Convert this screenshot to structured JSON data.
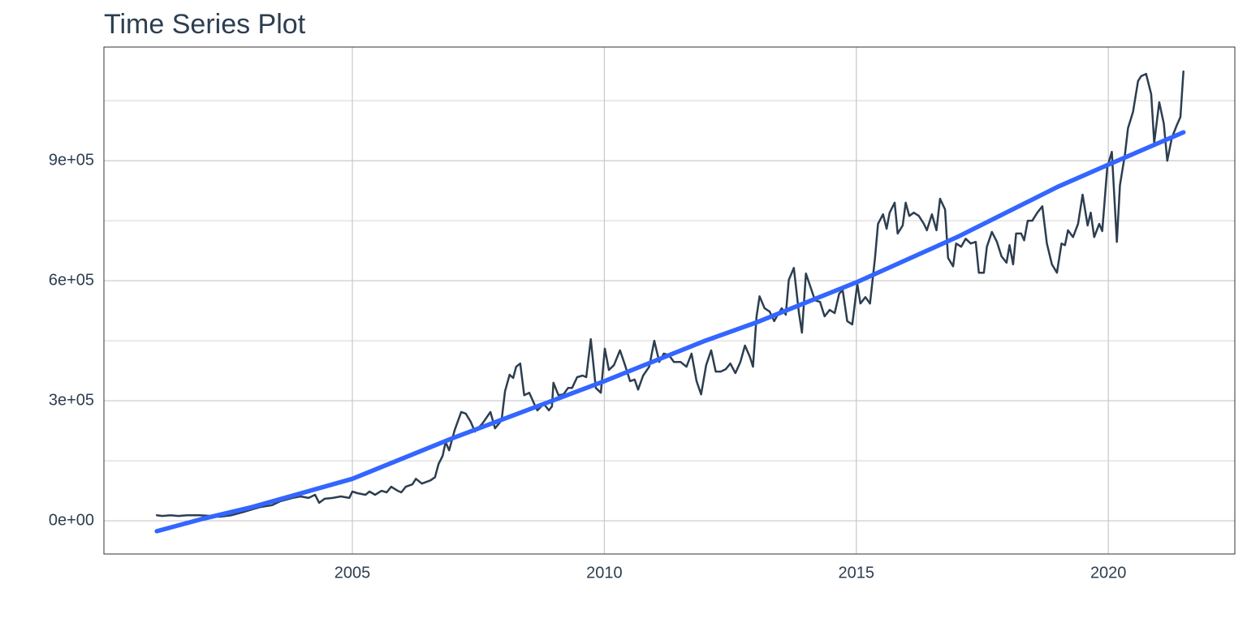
{
  "chart_data": {
    "type": "line",
    "title": "Time Series Plot",
    "xlim": [
      2000.07,
      2022.51
    ],
    "xticks": [
      2005,
      2010,
      2015,
      2020
    ],
    "ylim": [
      -83000,
      1184000
    ],
    "yticks": [
      {
        "value": 0,
        "label": "0e+00"
      },
      {
        "value": 300000,
        "label": "3e+05"
      },
      {
        "value": 600000,
        "label": "6e+05"
      },
      {
        "value": 900000,
        "label": "9e+05"
      }
    ],
    "yminor": [
      150000,
      450000,
      750000,
      1050000
    ],
    "grid": true,
    "series": [
      {
        "color": "#2c3e50",
        "width": 2.5,
        "x": [
          2001.12,
          2001.23,
          2001.39,
          2001.55,
          2001.72,
          2001.96,
          2002.2,
          2002.36,
          2002.6,
          2002.84,
          2003.0,
          2003.16,
          2003.41,
          2003.57,
          2003.81,
          2003.97,
          2004.13,
          2004.26,
          2004.34,
          2004.45,
          2004.61,
          2004.77,
          2004.94,
          2005.0,
          2005.1,
          2005.26,
          2005.34,
          2005.45,
          2005.58,
          2005.68,
          2005.77,
          2005.9,
          2005.97,
          2006.06,
          2006.19,
          2006.26,
          2006.38,
          2006.55,
          2006.64,
          2006.71,
          2006.79,
          2006.85,
          2006.92,
          2007.03,
          2007.16,
          2007.25,
          2007.35,
          2007.43,
          2007.58,
          2007.74,
          2007.83,
          2007.96,
          2008.03,
          2008.12,
          2008.19,
          2008.25,
          2008.33,
          2008.41,
          2008.51,
          2008.61,
          2008.67,
          2008.8,
          2008.9,
          2008.96,
          2008.99,
          2009.09,
          2009.19,
          2009.28,
          2009.36,
          2009.46,
          2009.57,
          2009.64,
          2009.73,
          2009.83,
          2009.93,
          2010.01,
          2010.09,
          2010.19,
          2010.31,
          2010.41,
          2010.51,
          2010.6,
          2010.67,
          2010.77,
          2010.89,
          2010.99,
          2011.09,
          2011.18,
          2011.28,
          2011.38,
          2011.51,
          2011.63,
          2011.73,
          2011.83,
          2011.92,
          2012.02,
          2012.12,
          2012.21,
          2012.31,
          2012.41,
          2012.5,
          2012.6,
          2012.7,
          2012.79,
          2012.89,
          2012.95,
          2013.02,
          2013.08,
          2013.18,
          2013.28,
          2013.37,
          2013.44,
          2013.52,
          2013.6,
          2013.66,
          2013.76,
          2013.86,
          2013.92,
          2014.0,
          2014.08,
          2014.18,
          2014.28,
          2014.37,
          2014.47,
          2014.57,
          2014.66,
          2014.73,
          2014.82,
          2014.92,
          2015.02,
          2015.08,
          2015.18,
          2015.27,
          2015.37,
          2015.43,
          2015.53,
          2015.6,
          2015.66,
          2015.76,
          2015.82,
          2015.92,
          2015.98,
          2016.05,
          2016.14,
          2016.24,
          2016.34,
          2016.4,
          2016.5,
          2016.59,
          2016.66,
          2016.76,
          2016.82,
          2016.92,
          2016.98,
          2017.08,
          2017.17,
          2017.27,
          2017.37,
          2017.43,
          2017.53,
          2017.59,
          2017.69,
          2017.79,
          2017.88,
          2017.98,
          2018.04,
          2018.11,
          2018.17,
          2018.27,
          2018.33,
          2018.4,
          2018.49,
          2018.59,
          2018.69,
          2018.78,
          2018.88,
          2018.98,
          2019.07,
          2019.14,
          2019.2,
          2019.3,
          2019.4,
          2019.49,
          2019.59,
          2019.65,
          2019.72,
          2019.82,
          2019.88,
          2019.98,
          2020.07,
          2020.17,
          2020.23,
          2020.33,
          2020.39,
          2020.49,
          2020.59,
          2020.65,
          2020.75,
          2020.85,
          2020.91,
          2021.01,
          2021.1,
          2021.17,
          2021.26,
          2021.36,
          2021.43,
          2021.49
        ],
        "values": [
          14000,
          12000,
          14000,
          12000,
          14000,
          14000,
          12000,
          10000,
          14000,
          22000,
          28000,
          34000,
          39000,
          49000,
          57000,
          61000,
          57000,
          65000,
          45000,
          55000,
          57000,
          61000,
          57000,
          73000,
          69000,
          65000,
          73000,
          65000,
          75000,
          71000,
          85000,
          75000,
          71000,
          85000,
          91000,
          105000,
          93000,
          101000,
          109000,
          142000,
          162000,
          197000,
          176000,
          227000,
          272000,
          268000,
          247000,
          223000,
          243000,
          272000,
          231000,
          251000,
          324000,
          365000,
          357000,
          385000,
          393000,
          314000,
          320000,
          292000,
          276000,
          292000,
          276000,
          286000,
          345000,
          314000,
          316000,
          332000,
          332000,
          359000,
          363000,
          359000,
          454000,
          332000,
          320000,
          430000,
          377000,
          389000,
          426000,
          389000,
          349000,
          353000,
          328000,
          363000,
          385000,
          450000,
          397000,
          418000,
          414000,
          397000,
          397000,
          385000,
          418000,
          349000,
          316000,
          389000,
          426000,
          373000,
          373000,
          379000,
          393000,
          369000,
          397000,
          438000,
          409000,
          385000,
          511000,
          561000,
          531000,
          523000,
          499000,
          515000,
          531000,
          515000,
          602000,
          632000,
          521000,
          470000,
          618000,
          588000,
          551000,
          547000,
          511000,
          527000,
          519000,
          568000,
          576000,
          499000,
          491000,
          592000,
          543000,
          559000,
          543000,
          657000,
          742000,
          766000,
          730000,
          770000,
          795000,
          718000,
          738000,
          795000,
          762000,
          770000,
          762000,
          742000,
          726000,
          766000,
          726000,
          805000,
          778000,
          657000,
          636000,
          693000,
          685000,
          705000,
          693000,
          697000,
          620000,
          620000,
          685000,
          722000,
          697000,
          661000,
          645000,
          689000,
          641000,
          718000,
          718000,
          701000,
          750000,
          750000,
          770000,
          786000,
          693000,
          641000,
          620000,
          693000,
          689000,
          726000,
          709000,
          742000,
          815000,
          738000,
          770000,
          709000,
          742000,
          724000,
          884000,
          922000,
          697000,
          839000,
          916000,
          981000,
          1022000,
          1099000,
          1111000,
          1117000,
          1066000,
          945000,
          1046000,
          993000,
          900000,
          957000,
          989000,
          1009000,
          1123000
        ]
      },
      {
        "color": "#3366ff",
        "width": 5.5,
        "x": [
          2001.12,
          2002,
          2003,
          2005,
          2007,
          2010,
          2012,
          2013,
          2015,
          2017,
          2019,
          2020,
          2021.49
        ],
        "values": [
          -26000,
          4000,
          34000,
          105000,
          207000,
          349000,
          450000,
          495000,
          596000,
          709000,
          835000,
          890000,
          971000
        ]
      }
    ]
  }
}
